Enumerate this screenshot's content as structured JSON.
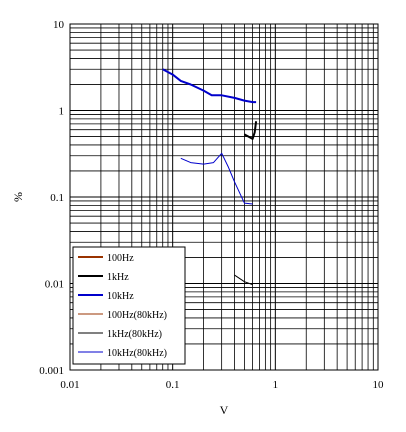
{
  "chart_data": {
    "type": "line",
    "title": "",
    "xlabel": "V",
    "ylabel": "%",
    "xscale": "log",
    "yscale": "log",
    "xlim": [
      0.01,
      10
    ],
    "ylim": [
      0.001,
      10
    ],
    "x_ticks": [
      "0.01",
      "0.1",
      "1",
      "10"
    ],
    "y_ticks": [
      "0.001",
      "0.01",
      "0.1",
      "1",
      "10"
    ],
    "grid": true,
    "legend_position": "bottom-left",
    "series": [
      {
        "name": "100Hz",
        "color": "#993300",
        "x": [],
        "y": []
      },
      {
        "name": "1kHz",
        "color": "#000000",
        "x": [
          0.5,
          0.6,
          0.63,
          0.65
        ],
        "y": [
          0.53,
          0.47,
          0.56,
          0.75
        ]
      },
      {
        "name": "10kHz",
        "color": "#0000cc",
        "x": [
          0.08,
          0.1,
          0.12,
          0.15,
          0.2,
          0.24,
          0.3,
          0.4,
          0.5,
          0.6,
          0.65
        ],
        "y": [
          3.0,
          2.6,
          2.2,
          2.0,
          1.7,
          1.5,
          1.5,
          1.4,
          1.3,
          1.25,
          1.25
        ]
      },
      {
        "name": "100Hz(80kHz)",
        "color": "#993300",
        "x": [],
        "y": []
      },
      {
        "name": "1kHz(80kHz)",
        "color": "#000000",
        "x": [
          0.4,
          0.5,
          0.6
        ],
        "y": [
          0.0125,
          0.0105,
          0.0097
        ]
      },
      {
        "name": "10kHz(80kHz)",
        "color": "#0000cc",
        "x": [
          0.12,
          0.15,
          0.2,
          0.25,
          0.3,
          0.35,
          0.4,
          0.5,
          0.6
        ],
        "y": [
          0.28,
          0.25,
          0.24,
          0.25,
          0.32,
          0.22,
          0.15,
          0.085,
          0.083
        ]
      }
    ]
  }
}
